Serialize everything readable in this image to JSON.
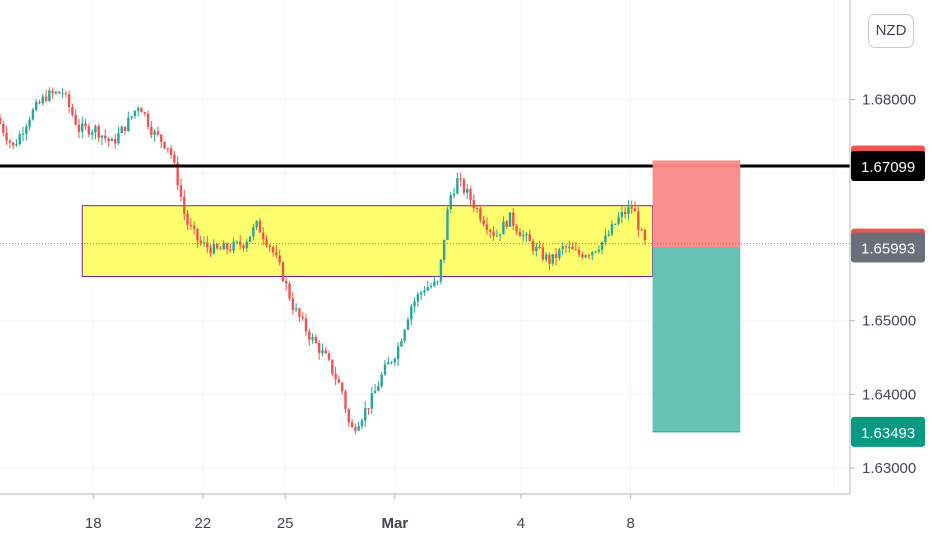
{
  "currency": "NZD",
  "colors": {
    "up": "#26a69a",
    "down": "#ef5350",
    "zone_fill": "#ffff55",
    "zone_border": "#7b1fa2",
    "resistance_line": "#000000",
    "stop_zone": "#f88a87",
    "target_zone": "#5dbfb0",
    "tag_red": "#ef5350",
    "tag_black": "#000000",
    "tag_gray": "#6b6f7a",
    "tag_teal": "#089981"
  },
  "chart_data": {
    "type": "candlestick",
    "instrument_currency": "NZD",
    "x_ticks": [
      {
        "label": "18",
        "day": 18,
        "bold": false
      },
      {
        "label": "22",
        "day": 22,
        "bold": false
      },
      {
        "label": "25",
        "day": 25,
        "bold": false
      },
      {
        "label": "Mar",
        "day": 29,
        "bold": true
      },
      {
        "label": "4",
        "day": 33.6,
        "bold": false
      },
      {
        "label": "8",
        "day": 37.6,
        "bold": false
      }
    ],
    "y_ticks": [
      "1.68000",
      "1.65000",
      "1.64000",
      "1.63000"
    ],
    "y_tick_values": [
      1.68,
      1.65,
      1.64,
      1.63
    ],
    "ylim": [
      1.6265,
      1.6935
    ],
    "xlim": [
      14.6,
      45.6
    ],
    "price_path": [
      [
        14.6,
        1.6775
      ],
      [
        15.2,
        1.6735
      ],
      [
        15.8,
        1.6778
      ],
      [
        16.4,
        1.6805
      ],
      [
        17.0,
        1.681
      ],
      [
        17.6,
        1.676
      ],
      [
        18.2,
        1.676
      ],
      [
        18.8,
        1.674
      ],
      [
        19.4,
        1.677
      ],
      [
        19.8,
        1.6795
      ],
      [
        20.3,
        1.6755
      ],
      [
        20.9,
        1.6735
      ],
      [
        21.2,
        1.669
      ],
      [
        21.5,
        1.6635
      ],
      [
        22.0,
        1.6605
      ],
      [
        22.6,
        1.6595
      ],
      [
        23.2,
        1.66
      ],
      [
        23.6,
        1.6605
      ],
      [
        24.1,
        1.663
      ],
      [
        24.6,
        1.66
      ],
      [
        25.0,
        1.6565
      ],
      [
        25.4,
        1.652
      ],
      [
        26.0,
        1.648
      ],
      [
        26.6,
        1.645
      ],
      [
        27.2,
        1.6405
      ],
      [
        27.5,
        1.635
      ],
      [
        27.9,
        1.637
      ],
      [
        28.3,
        1.6395
      ],
      [
        28.7,
        1.643
      ],
      [
        29.2,
        1.646
      ],
      [
        29.7,
        1.652
      ],
      [
        30.2,
        1.6545
      ],
      [
        30.7,
        1.655
      ],
      [
        31.1,
        1.6665
      ],
      [
        31.4,
        1.669
      ],
      [
        31.8,
        1.667
      ],
      [
        32.3,
        1.664
      ],
      [
        32.8,
        1.6615
      ],
      [
        33.3,
        1.664
      ],
      [
        33.8,
        1.6615
      ],
      [
        34.3,
        1.6595
      ],
      [
        34.8,
        1.658
      ],
      [
        35.3,
        1.66
      ],
      [
        35.8,
        1.659
      ],
      [
        36.3,
        1.6595
      ],
      [
        36.8,
        1.661
      ],
      [
        37.3,
        1.664
      ],
      [
        37.8,
        1.6655
      ],
      [
        38.2,
        1.6605
      ]
    ],
    "annotations": {
      "support_zone": {
        "x_start": 17.6,
        "x_end": 38.4,
        "y_top": 1.6656,
        "y_bottom": 1.656
      },
      "resistance_line": {
        "value": 1.67099,
        "label": "1.67099"
      },
      "risk_reward": {
        "x_start": 38.4,
        "x_end": 41.6,
        "entry": 1.66,
        "stop": 1.67174,
        "target": 1.63493
      }
    },
    "price_tags": [
      {
        "label": "1.67174",
        "value": 1.67174,
        "color": "#ef5350"
      },
      {
        "label": "1.67099",
        "value": 1.67099,
        "color": "#000000"
      },
      {
        "label": "1.66045",
        "value": 1.66045,
        "color": "#ef5350"
      },
      {
        "label": "1.65993",
        "value": 1.65993,
        "color": "#6b6f7a"
      },
      {
        "label": "1.63493",
        "value": 1.63493,
        "color": "#089981"
      }
    ],
    "last_price": 1.66045,
    "grid": true
  }
}
